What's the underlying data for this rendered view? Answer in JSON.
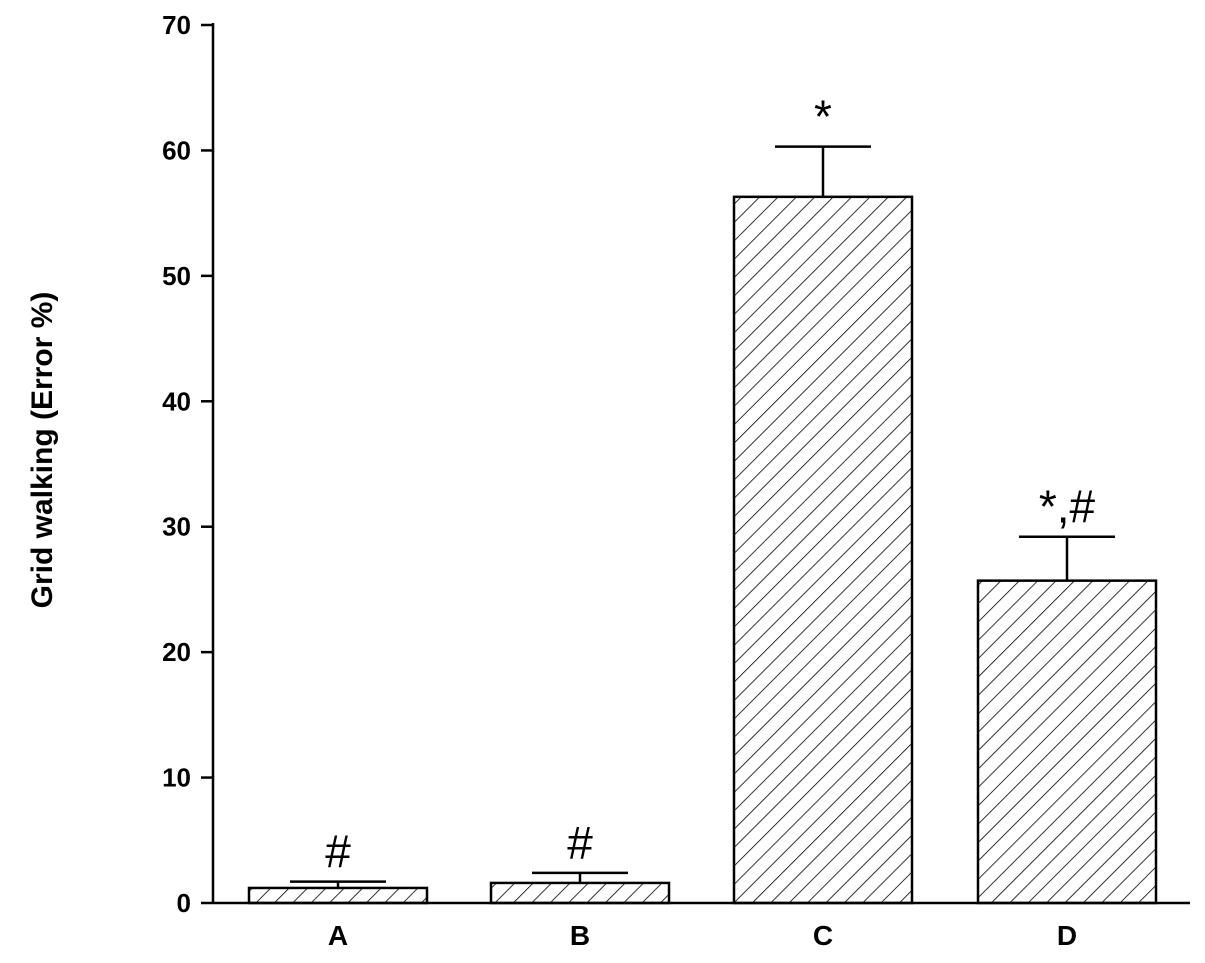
{
  "chart_data": {
    "type": "bar",
    "categories": [
      "A",
      "B",
      "C",
      "D"
    ],
    "values": [
      1.2,
      1.6,
      56.3,
      25.7
    ],
    "error": [
      0.5,
      0.8,
      4.0,
      3.5
    ],
    "annotations": [
      "#",
      "#",
      "*",
      "*,#"
    ],
    "title": "",
    "xlabel": "",
    "ylabel": "Grid walking (Error %)",
    "ylim": [
      0,
      70
    ],
    "yticks": [
      0,
      10,
      20,
      30,
      40,
      50,
      60,
      70
    ],
    "ytick_labels": [
      "0",
      "10",
      "20",
      "30",
      "40",
      "50",
      "60",
      "70"
    ],
    "bar_fill": "hatched",
    "grid": false,
    "legend": "none"
  }
}
